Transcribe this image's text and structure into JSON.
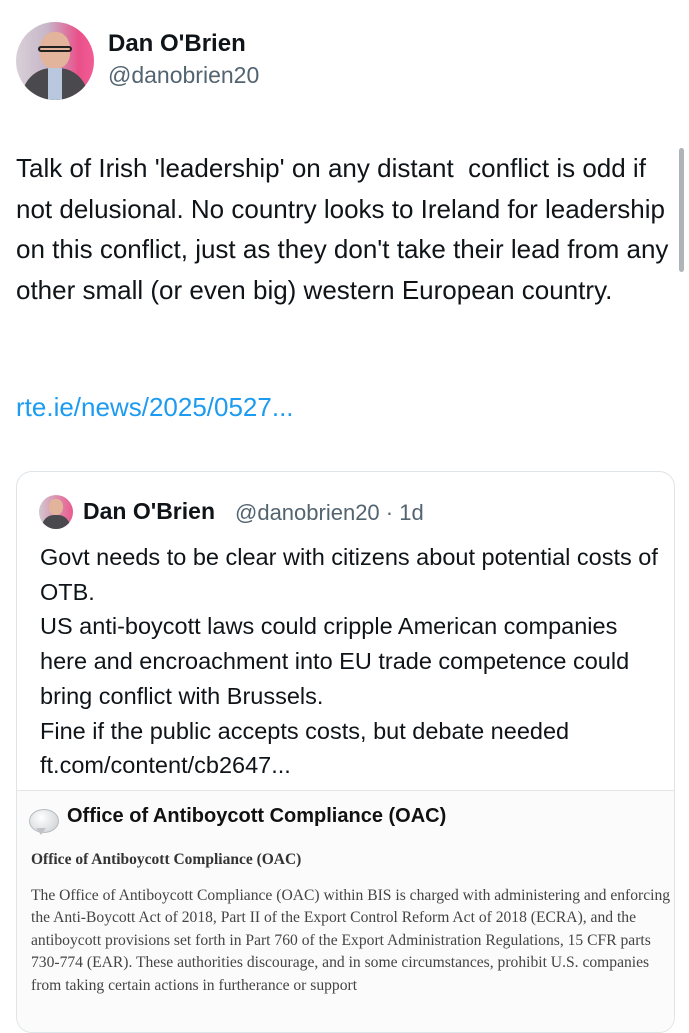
{
  "author": {
    "name": "Dan O'Brien",
    "handle": "@danobrien20"
  },
  "tweet": {
    "text": "Talk of Irish 'leadership' on any distant  conflict is odd if not delusional. No country looks to Ireland for leadership on this conflict, just as they don't take their lead from any other small (or even big) western European country.",
    "link": "rte.ie/news/2025/0527..."
  },
  "quote": {
    "name": "Dan O'Brien",
    "handle": "@danobrien20",
    "time": "· 1d",
    "text": "Govt needs to be clear with citizens about potential costs of OTB.\nUS anti-boycott laws could cripple American companies here and encroachment into EU trade competence could bring conflict with Brussels.\nFine if the public accepts costs, but debate needed\nft.com/content/cb2647...",
    "image": {
      "title": "Office of Antiboycott Compliance (OAC)",
      "subtitle": "Office of Antiboycott Compliance (OAC)",
      "body": "The Office of Antiboycott Compliance (OAC) within BIS is charged with administering and enforcing the Anti-Boycott Act of 2018, Part II of the Export Control Reform Act of 2018 (ECRA), and the antiboycott provisions set forth in Part 760 of the Export Administration Regulations, 15 CFR parts 730-774 (EAR). These authorities discourage, and in some circumstances, prohibit U.S. companies from taking certain actions in furtherance or support"
    }
  },
  "colors": {
    "link": "#1d9bf0",
    "secondary": "#536471"
  }
}
